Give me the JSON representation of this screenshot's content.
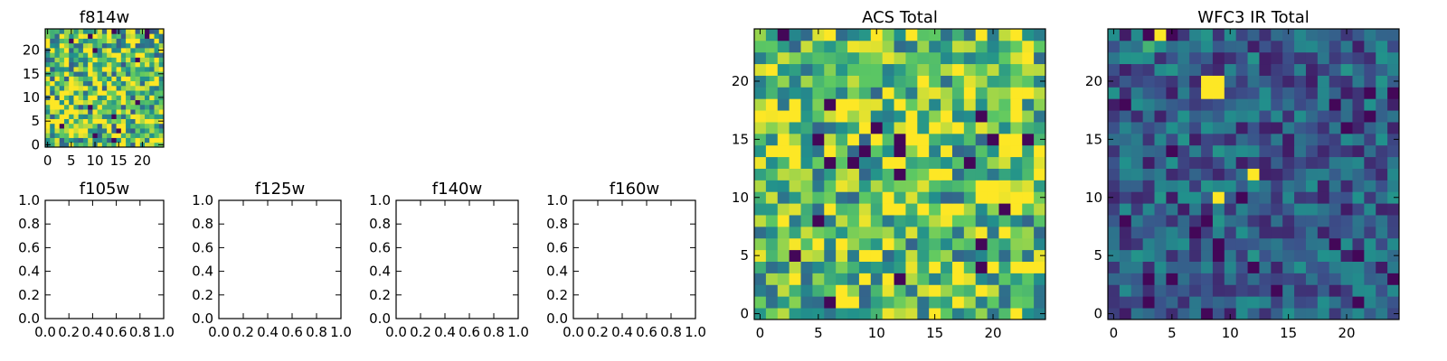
{
  "figure": {
    "colormap": [
      "#440154",
      "#3b528b",
      "#21918c",
      "#5ec962",
      "#fde725"
    ]
  },
  "chart_data": [
    {
      "id": "f814w",
      "type": "heatmap",
      "title": "f814w",
      "xlabel": "",
      "ylabel": "",
      "xlim": [
        0,
        25
      ],
      "ylim": [
        0,
        25
      ],
      "grid": false,
      "xticks": [
        0,
        5,
        10,
        15,
        20
      ],
      "yticks": [
        0,
        5,
        10,
        15,
        20
      ],
      "image": {
        "rows": 25,
        "cols": 25,
        "pattern": "noise",
        "mean": 0.72,
        "spread": 0.45,
        "seed": 11,
        "outliers": []
      }
    },
    {
      "id": "acs-total",
      "type": "heatmap",
      "title": "ACS Total",
      "xlabel": "",
      "ylabel": "",
      "xlim": [
        0,
        25
      ],
      "ylim": [
        0,
        25
      ],
      "grid": false,
      "xticks": [
        0,
        5,
        10,
        15,
        20
      ],
      "yticks": [
        0,
        5,
        10,
        15,
        20
      ],
      "image": {
        "rows": 25,
        "cols": 25,
        "pattern": "noise",
        "mean": 0.72,
        "spread": 0.4,
        "seed": 23,
        "outliers": []
      }
    },
    {
      "id": "wfc3-ir-total",
      "type": "heatmap",
      "title": "WFC3 IR Total",
      "xlabel": "",
      "ylabel": "",
      "xlim": [
        0,
        25
      ],
      "ylim": [
        0,
        25
      ],
      "grid": false,
      "xticks": [
        0,
        5,
        10,
        15,
        20
      ],
      "yticks": [
        0,
        5,
        10,
        15,
        20
      ],
      "image": {
        "rows": 25,
        "cols": 25,
        "pattern": "noise",
        "mean": 0.3,
        "spread": 0.22,
        "seed": 47,
        "outliers": [
          {
            "x": 8,
            "y": 19,
            "v": 1.0
          },
          {
            "x": 9,
            "y": 19,
            "v": 1.0
          },
          {
            "x": 8,
            "y": 20,
            "v": 1.0
          },
          {
            "x": 9,
            "y": 20,
            "v": 1.0
          },
          {
            "x": 12,
            "y": 12,
            "v": 1.0
          },
          {
            "x": 9,
            "y": 10,
            "v": 1.0
          },
          {
            "x": 4,
            "y": 24,
            "v": 1.0
          },
          {
            "x": 3,
            "y": 23,
            "v": 0.65
          }
        ]
      }
    },
    {
      "id": "f105w",
      "type": "scatter",
      "title": "f105w",
      "xlabel": "",
      "ylabel": "",
      "xlim": [
        0.0,
        1.0
      ],
      "ylim": [
        0.0,
        1.0
      ],
      "grid": false,
      "series": [],
      "xticks": [
        "0.0",
        "0.2",
        "0.4",
        "0.6",
        "0.8",
        "1.0"
      ],
      "yticks": [
        "0.0",
        "0.2",
        "0.4",
        "0.6",
        "0.8",
        "1.0"
      ]
    },
    {
      "id": "f125w",
      "type": "scatter",
      "title": "f125w",
      "xlabel": "",
      "ylabel": "",
      "xlim": [
        0.0,
        1.0
      ],
      "ylim": [
        0.0,
        1.0
      ],
      "grid": false,
      "series": [],
      "xticks": [
        "0.0",
        "0.2",
        "0.4",
        "0.6",
        "0.8",
        "1.0"
      ],
      "yticks": [
        "0.0",
        "0.2",
        "0.4",
        "0.6",
        "0.8",
        "1.0"
      ]
    },
    {
      "id": "f140w",
      "type": "scatter",
      "title": "f140w",
      "xlabel": "",
      "ylabel": "",
      "xlim": [
        0.0,
        1.0
      ],
      "ylim": [
        0.0,
        1.0
      ],
      "grid": false,
      "series": [],
      "xticks": [
        "0.0",
        "0.2",
        "0.4",
        "0.6",
        "0.8",
        "1.0"
      ],
      "yticks": [
        "0.0",
        "0.2",
        "0.4",
        "0.6",
        "0.8",
        "1.0"
      ]
    },
    {
      "id": "f160w",
      "type": "scatter",
      "title": "f160w",
      "xlabel": "",
      "ylabel": "",
      "xlim": [
        0.0,
        1.0
      ],
      "ylim": [
        0.0,
        1.0
      ],
      "grid": false,
      "series": [],
      "xticks": [
        "0.0",
        "0.2",
        "0.4",
        "0.6",
        "0.8",
        "1.0"
      ],
      "yticks": [
        "0.0",
        "0.2",
        "0.4",
        "0.6",
        "0.8",
        "1.0"
      ]
    }
  ]
}
